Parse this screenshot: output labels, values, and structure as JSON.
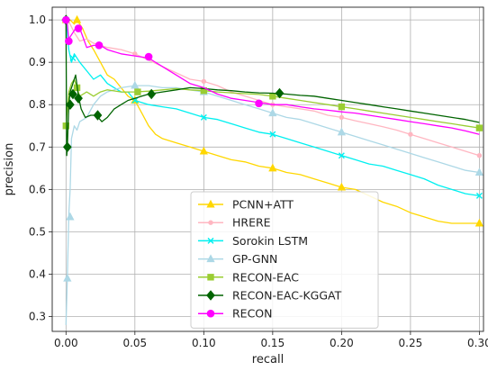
{
  "chart_data": {
    "type": "line",
    "title": "",
    "xlabel": "recall",
    "ylabel": "precision",
    "xlim": [
      -0.01,
      0.303
    ],
    "ylim": [
      0.265,
      1.03
    ],
    "xticks": [
      0.0,
      0.05,
      0.1,
      0.15,
      0.2,
      0.25,
      0.3
    ],
    "xtick_labels": [
      "0.00",
      "0.05",
      "0.10",
      "0.15",
      "0.20",
      "0.25",
      "0.30"
    ],
    "yticks": [
      0.3,
      0.4,
      0.5,
      0.6,
      0.7,
      0.8,
      0.9,
      1.0
    ],
    "ytick_labels": [
      "0.3",
      "0.4",
      "0.5",
      "0.6",
      "0.7",
      "0.8",
      "0.9",
      "1.0"
    ],
    "grid": true,
    "legend_position": "lower-center",
    "series": [
      {
        "name": "PCNN+ATT",
        "color": "#FFD700",
        "marker": "triangle",
        "x": [
          0.0,
          0.003,
          0.006,
          0.008,
          0.012,
          0.016,
          0.02,
          0.025,
          0.03,
          0.035,
          0.04,
          0.045,
          0.05,
          0.055,
          0.06,
          0.065,
          0.07,
          0.08,
          0.09,
          0.1,
          0.11,
          0.12,
          0.13,
          0.14,
          0.15,
          0.16,
          0.17,
          0.18,
          0.19,
          0.2,
          0.21,
          0.22,
          0.23,
          0.24,
          0.25,
          0.26,
          0.27,
          0.28,
          0.29,
          0.3
        ],
        "y": [
          1.0,
          1.0,
          0.99,
          1.0,
          0.98,
          0.95,
          0.93,
          0.9,
          0.87,
          0.86,
          0.84,
          0.82,
          0.81,
          0.78,
          0.75,
          0.73,
          0.72,
          0.71,
          0.7,
          0.69,
          0.68,
          0.67,
          0.665,
          0.655,
          0.65,
          0.64,
          0.635,
          0.625,
          0.615,
          0.605,
          0.6,
          0.585,
          0.57,
          0.56,
          0.545,
          0.535,
          0.525,
          0.52,
          0.52,
          0.52
        ],
        "markers_x": [
          0.0,
          0.008,
          0.05,
          0.1,
          0.15,
          0.2,
          0.3
        ],
        "markers_y": [
          1.0,
          1.0,
          0.81,
          0.69,
          0.65,
          0.605,
          0.52
        ]
      },
      {
        "name": "HRERE",
        "color": "#FFB6C1",
        "marker": "point",
        "x": [
          0.0,
          0.003,
          0.006,
          0.01,
          0.015,
          0.02,
          0.025,
          0.03,
          0.04,
          0.05,
          0.06,
          0.07,
          0.08,
          0.09,
          0.1,
          0.11,
          0.12,
          0.13,
          0.14,
          0.15,
          0.16,
          0.17,
          0.18,
          0.19,
          0.2,
          0.21,
          0.22,
          0.23,
          0.24,
          0.25,
          0.26,
          0.27,
          0.28,
          0.29,
          0.3
        ],
        "y": [
          1.0,
          0.99,
          0.97,
          0.95,
          0.955,
          0.945,
          0.94,
          0.935,
          0.93,
          0.92,
          0.905,
          0.89,
          0.875,
          0.86,
          0.855,
          0.845,
          0.83,
          0.82,
          0.81,
          0.8,
          0.795,
          0.79,
          0.785,
          0.775,
          0.77,
          0.762,
          0.755,
          0.748,
          0.74,
          0.73,
          0.72,
          0.71,
          0.7,
          0.69,
          0.68
        ],
        "markers_x": [
          0.0,
          0.05,
          0.1,
          0.15,
          0.2,
          0.25,
          0.3
        ],
        "markers_y": [
          1.0,
          0.92,
          0.855,
          0.8,
          0.77,
          0.73,
          0.68
        ]
      },
      {
        "name": "Sorokin LSTM",
        "color": "#00F0F0",
        "marker": "x",
        "x": [
          0.0,
          0.002,
          0.004,
          0.006,
          0.008,
          0.01,
          0.015,
          0.02,
          0.025,
          0.03,
          0.035,
          0.04,
          0.045,
          0.05,
          0.06,
          0.07,
          0.08,
          0.09,
          0.1,
          0.11,
          0.12,
          0.13,
          0.14,
          0.15,
          0.16,
          0.17,
          0.18,
          0.19,
          0.2,
          0.21,
          0.22,
          0.23,
          0.24,
          0.25,
          0.26,
          0.27,
          0.28,
          0.29,
          0.3
        ],
        "y": [
          1.0,
          0.93,
          0.9,
          0.92,
          0.91,
          0.9,
          0.88,
          0.86,
          0.87,
          0.85,
          0.84,
          0.83,
          0.83,
          0.81,
          0.8,
          0.795,
          0.79,
          0.78,
          0.77,
          0.765,
          0.755,
          0.745,
          0.735,
          0.73,
          0.72,
          0.71,
          0.7,
          0.69,
          0.68,
          0.67,
          0.66,
          0.655,
          0.645,
          0.635,
          0.625,
          0.61,
          0.6,
          0.59,
          0.585
        ],
        "markers_x": [
          0.0,
          0.005,
          0.05,
          0.1,
          0.15,
          0.2,
          0.3
        ],
        "markers_y": [
          1.0,
          0.91,
          0.81,
          0.77,
          0.73,
          0.68,
          0.585
        ]
      },
      {
        "name": "GP-GNN",
        "color": "#ADD8E6",
        "marker": "triangle",
        "x": [
          0.0,
          0.001,
          0.002,
          0.003,
          0.004,
          0.006,
          0.008,
          0.01,
          0.015,
          0.02,
          0.025,
          0.03,
          0.04,
          0.05,
          0.06,
          0.07,
          0.08,
          0.09,
          0.1,
          0.11,
          0.12,
          0.13,
          0.14,
          0.15,
          0.16,
          0.17,
          0.18,
          0.19,
          0.2,
          0.21,
          0.22,
          0.23,
          0.24,
          0.25,
          0.26,
          0.27,
          0.28,
          0.29,
          0.3
        ],
        "y": [
          0.28,
          0.39,
          0.54,
          0.6,
          0.72,
          0.75,
          0.74,
          0.76,
          0.77,
          0.8,
          0.82,
          0.83,
          0.84,
          0.845,
          0.845,
          0.84,
          0.84,
          0.835,
          0.83,
          0.82,
          0.81,
          0.8,
          0.79,
          0.78,
          0.77,
          0.765,
          0.755,
          0.745,
          0.735,
          0.725,
          0.715,
          0.705,
          0.695,
          0.685,
          0.675,
          0.665,
          0.655,
          0.645,
          0.64
        ],
        "markers_x": [
          0.001,
          0.003,
          0.05,
          0.1,
          0.15,
          0.2,
          0.3
        ],
        "markers_y": [
          0.39,
          0.535,
          0.845,
          0.83,
          0.78,
          0.735,
          0.64
        ]
      },
      {
        "name": "RECON-EAC",
        "color": "#9ACD32",
        "marker": "square",
        "x": [
          0.0,
          0.002,
          0.004,
          0.006,
          0.008,
          0.01,
          0.015,
          0.02,
          0.025,
          0.03,
          0.04,
          0.05,
          0.06,
          0.07,
          0.08,
          0.09,
          0.1,
          0.11,
          0.12,
          0.13,
          0.14,
          0.15,
          0.16,
          0.17,
          0.18,
          0.19,
          0.2,
          0.21,
          0.22,
          0.23,
          0.24,
          0.25,
          0.26,
          0.27,
          0.28,
          0.29,
          0.3
        ],
        "y": [
          0.75,
          0.83,
          0.85,
          0.86,
          0.84,
          0.82,
          0.83,
          0.82,
          0.83,
          0.835,
          0.83,
          0.83,
          0.832,
          0.835,
          0.838,
          0.835,
          0.833,
          0.83,
          0.828,
          0.826,
          0.824,
          0.82,
          0.815,
          0.81,
          0.805,
          0.8,
          0.795,
          0.79,
          0.785,
          0.78,
          0.775,
          0.77,
          0.765,
          0.76,
          0.755,
          0.75,
          0.745
        ],
        "markers_x": [
          0.0,
          0.008,
          0.052,
          0.1,
          0.15,
          0.2,
          0.3
        ],
        "markers_y": [
          0.75,
          0.84,
          0.83,
          0.833,
          0.82,
          0.795,
          0.745
        ]
      },
      {
        "name": "RECON-EAC-KGGAT",
        "color": "#006400",
        "marker": "diamond",
        "x": [
          0.0,
          0.0005,
          0.001,
          0.002,
          0.003,
          0.005,
          0.007,
          0.009,
          0.011,
          0.014,
          0.018,
          0.022,
          0.026,
          0.03,
          0.035,
          0.04,
          0.045,
          0.05,
          0.055,
          0.06,
          0.07,
          0.08,
          0.09,
          0.1,
          0.11,
          0.12,
          0.13,
          0.14,
          0.15,
          0.16,
          0.17,
          0.18,
          0.19,
          0.2,
          0.21,
          0.22,
          0.23,
          0.24,
          0.25,
          0.26,
          0.27,
          0.28,
          0.29,
          0.3
        ],
        "y": [
          1.0,
          0.68,
          0.7,
          0.8,
          0.83,
          0.85,
          0.87,
          0.82,
          0.79,
          0.77,
          0.775,
          0.775,
          0.76,
          0.77,
          0.79,
          0.8,
          0.81,
          0.815,
          0.82,
          0.825,
          0.83,
          0.835,
          0.84,
          0.838,
          0.835,
          0.833,
          0.83,
          0.828,
          0.827,
          0.825,
          0.822,
          0.82,
          0.815,
          0.81,
          0.805,
          0.8,
          0.795,
          0.79,
          0.785,
          0.78,
          0.775,
          0.77,
          0.765,
          0.758
        ],
        "markers_x": [
          0.0,
          0.001,
          0.003,
          0.005,
          0.009,
          0.023,
          0.062,
          0.155
        ],
        "markers_y": [
          1.0,
          0.7,
          0.8,
          0.825,
          0.815,
          0.775,
          0.825,
          0.827
        ]
      },
      {
        "name": "RECON",
        "color": "#FF00FF",
        "marker": "circle",
        "x": [
          0.0,
          0.001,
          0.002,
          0.003,
          0.005,
          0.007,
          0.01,
          0.015,
          0.02,
          0.025,
          0.03,
          0.04,
          0.05,
          0.06,
          0.07,
          0.08,
          0.09,
          0.1,
          0.11,
          0.12,
          0.13,
          0.14,
          0.15,
          0.16,
          0.17,
          0.18,
          0.19,
          0.2,
          0.21,
          0.22,
          0.23,
          0.24,
          0.25,
          0.26,
          0.27,
          0.28,
          0.29,
          0.3
        ],
        "y": [
          1.0,
          0.99,
          0.95,
          0.96,
          0.97,
          0.98,
          0.98,
          0.935,
          0.94,
          0.94,
          0.93,
          0.92,
          0.915,
          0.91,
          0.89,
          0.87,
          0.85,
          0.84,
          0.825,
          0.815,
          0.81,
          0.805,
          0.8,
          0.8,
          0.795,
          0.79,
          0.787,
          0.783,
          0.78,
          0.775,
          0.77,
          0.765,
          0.76,
          0.755,
          0.75,
          0.745,
          0.738,
          0.73
        ],
        "markers_x": [
          0.0,
          0.002,
          0.009,
          0.024,
          0.06,
          0.14
        ],
        "markers_y": [
          1.0,
          0.95,
          0.98,
          0.94,
          0.913,
          0.803
        ]
      }
    ]
  }
}
